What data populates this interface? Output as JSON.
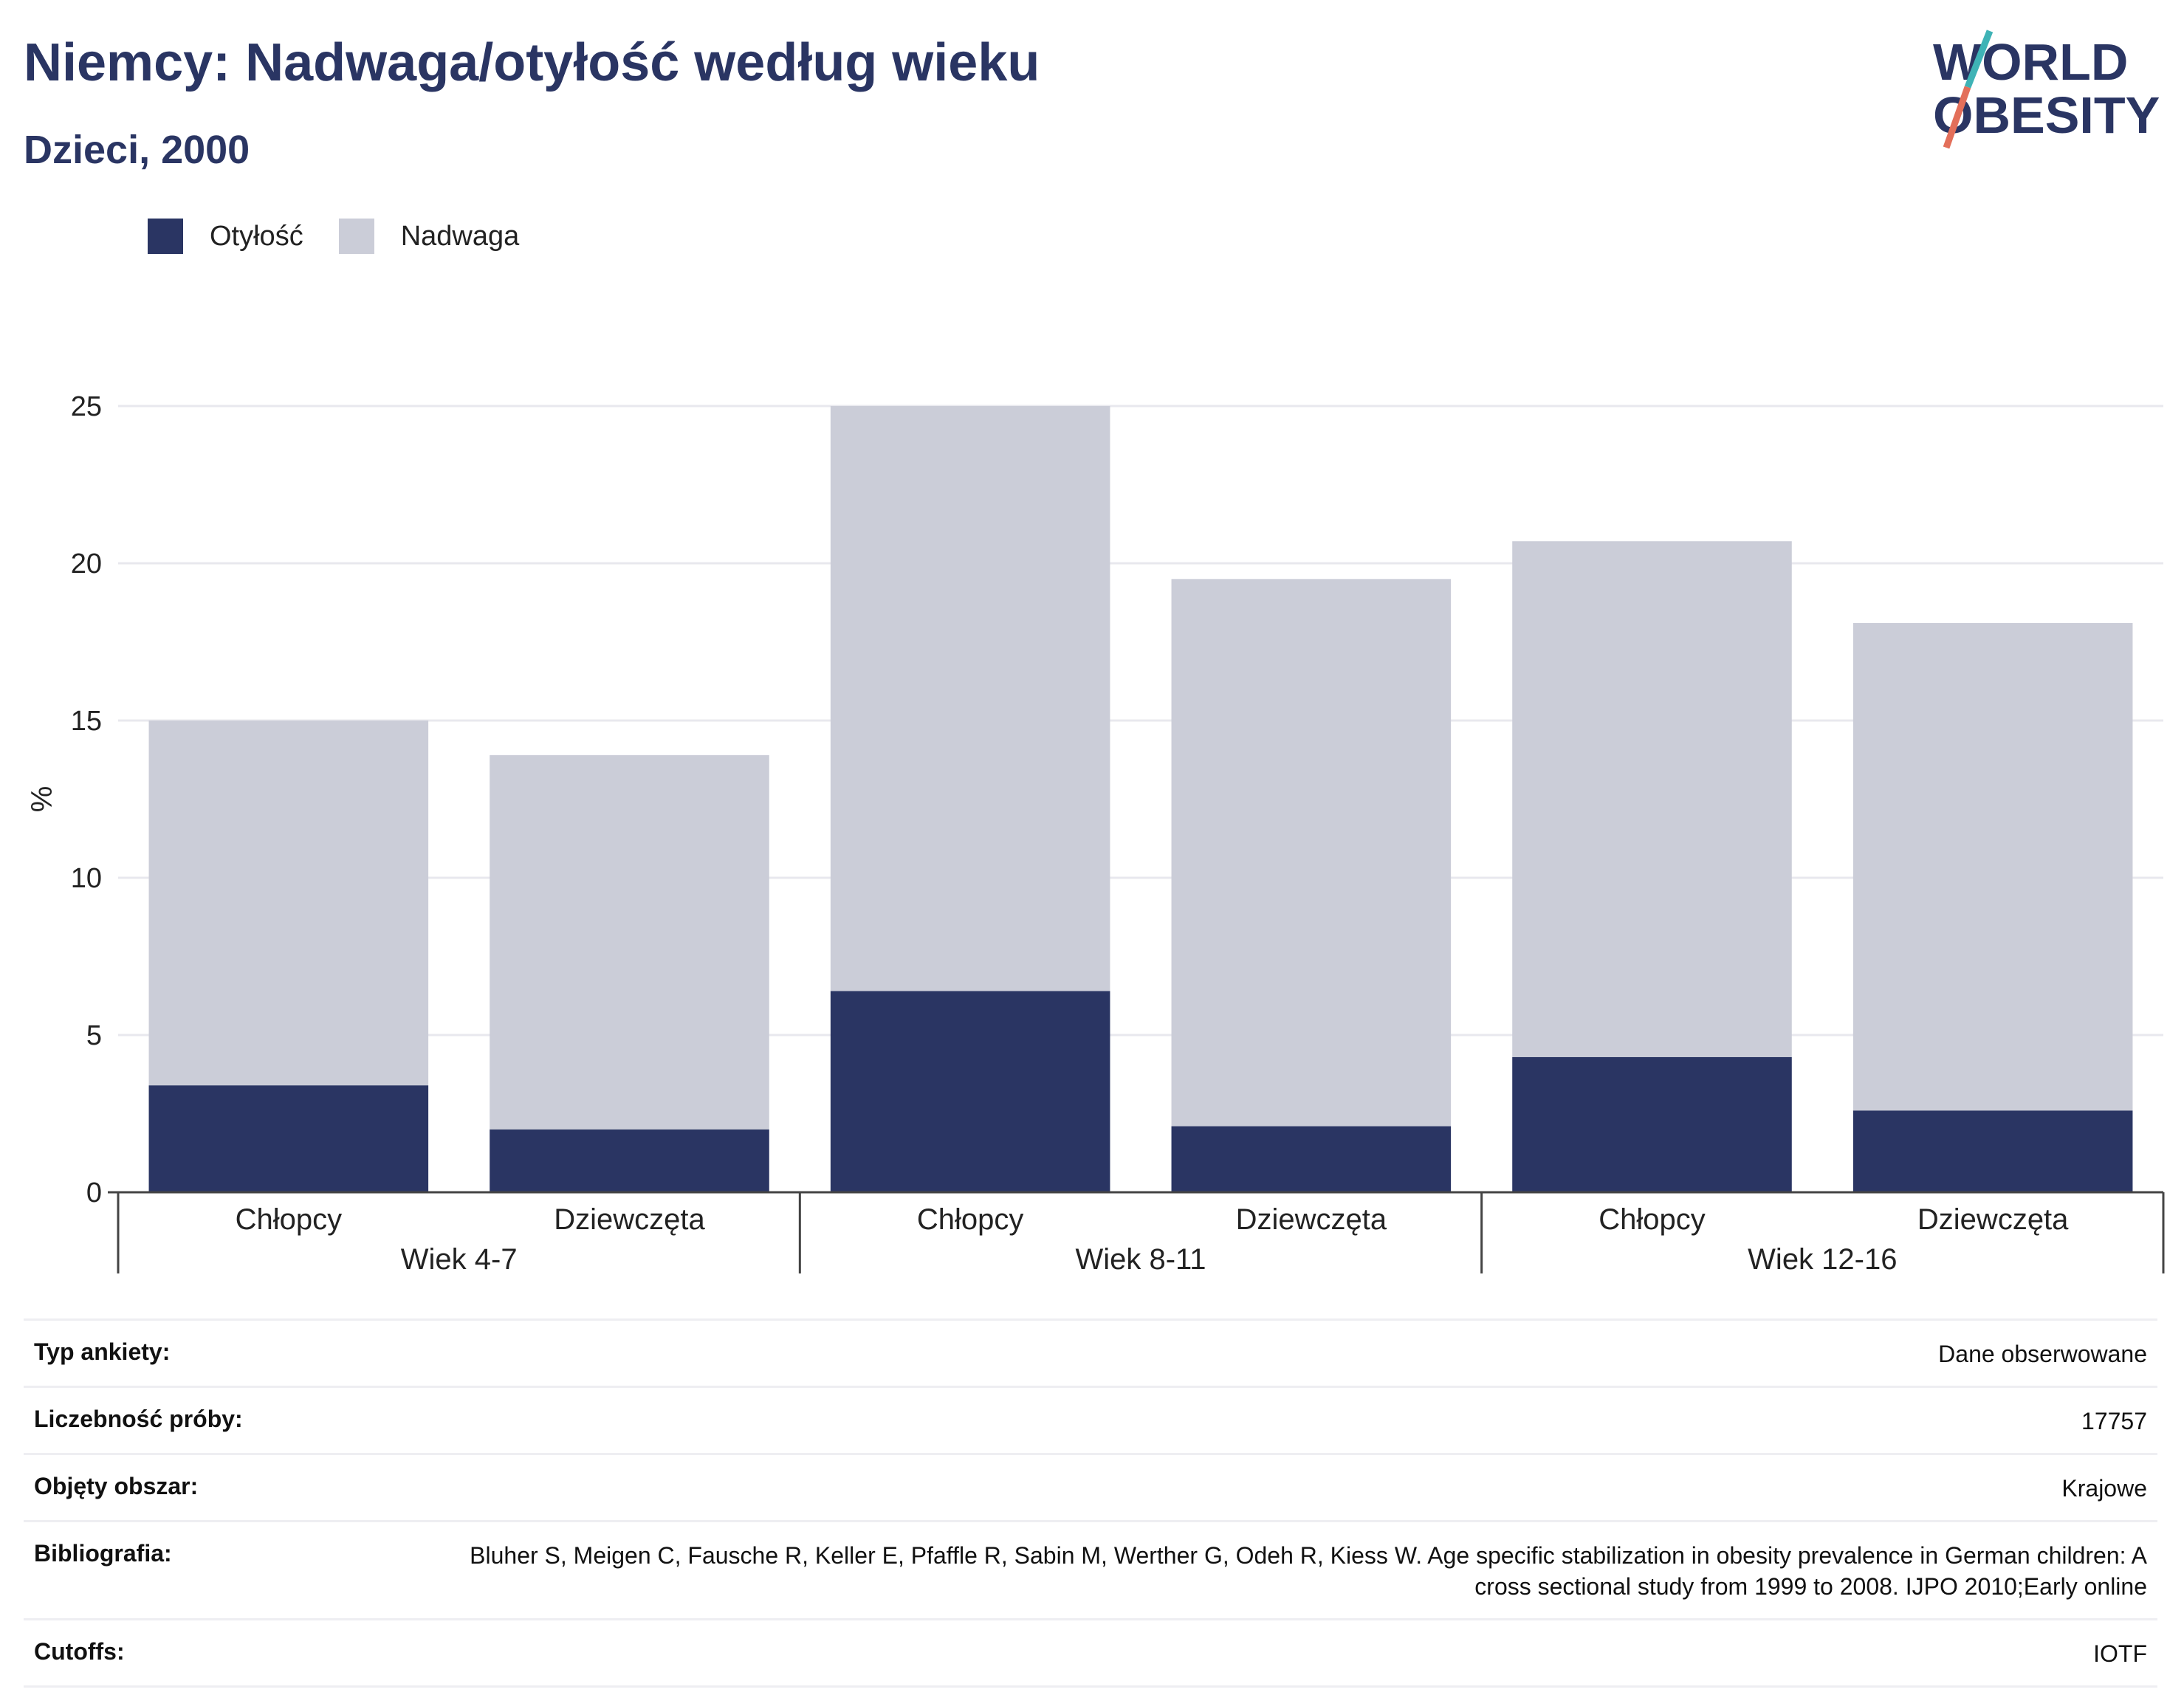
{
  "header": {
    "title": "Niemcy: Nadwaga/otyłość według wieku",
    "subtitle": "Dzieci, 2000"
  },
  "logo": {
    "line1": "WORLD",
    "line2": "OBESITY"
  },
  "legend": [
    {
      "label": "Otyłość",
      "color": "#2a3563"
    },
    {
      "label": "Nadwaga",
      "color": "#cbcdd8"
    }
  ],
  "chart_data": {
    "type": "bar",
    "stacked": true,
    "ylabel": "%",
    "ylim": [
      0,
      25
    ],
    "yticks": [
      0,
      5,
      10,
      15,
      20,
      25
    ],
    "grid": true,
    "legend_position": "top-left",
    "groups": [
      "Wiek 4-7",
      "Wiek 8-11",
      "Wiek 12-16"
    ],
    "categories": [
      "Chłopcy",
      "Dziewczęta",
      "Chłopcy",
      "Dziewczęta",
      "Chłopcy",
      "Dziewczęta"
    ],
    "series": [
      {
        "name": "Otyłość",
        "color": "#2a3563",
        "values": [
          3.4,
          2.0,
          6.4,
          2.1,
          4.3,
          2.6
        ]
      },
      {
        "name": "Nadwaga",
        "color": "#cbcdd8",
        "values": [
          11.6,
          11.9,
          18.6,
          17.4,
          16.4,
          15.5
        ]
      }
    ]
  },
  "meta": [
    {
      "key": "Typ ankiety:",
      "value": "Dane obserwowane"
    },
    {
      "key": "Liczebność próby:",
      "value": "17757"
    },
    {
      "key": "Objęty obszar:",
      "value": "Krajowe"
    },
    {
      "key": "Bibliografia:",
      "value": "Bluher S, Meigen C, Fausche R, Keller E, Pfaffle R, Sabin M, Werther G, Odeh R, Kiess W. Age specific stabilization in obesity prevalence in German children: A cross sectional study from 1999 to 2008. IJPO 2010;Early online"
    },
    {
      "key": "Cutoffs:",
      "value": "IOTF"
    }
  ]
}
